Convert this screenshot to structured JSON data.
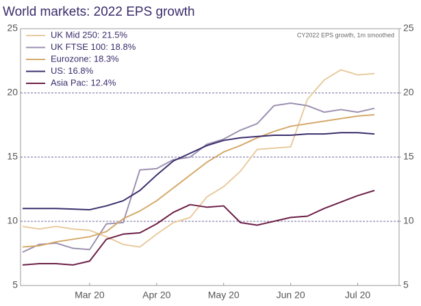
{
  "chart_data": {
    "type": "line",
    "title": "World markets: 2022 EPS growth",
    "annotation": "CY2022 EPS growth, 1m smoothed",
    "categories": [
      null,
      null,
      null,
      null,
      "Mar 20",
      null,
      null,
      null,
      "Apr 20",
      null,
      null,
      null,
      "May 20",
      null,
      null,
      null,
      "Jun 20",
      null,
      null,
      null,
      "Jul 20",
      null
    ],
    "series": [
      {
        "name": "UK Mid 250: 21.5%",
        "color": "#e8cb9f",
        "values": [
          9.6,
          9.4,
          9.6,
          9.4,
          9.3,
          8.8,
          8.2,
          8.0,
          9.0,
          9.9,
          10.3,
          11.9,
          12.7,
          13.9,
          15.6,
          15.7,
          15.8,
          19.5,
          21.0,
          21.8,
          21.4,
          21.5
        ]
      },
      {
        "name": "UK FTSE 100: 18.8%",
        "color": "#9b8fb0",
        "values": [
          7.6,
          8.2,
          8.3,
          7.9,
          7.8,
          9.8,
          9.9,
          14.0,
          14.1,
          14.8,
          15.0,
          16.0,
          16.4,
          17.1,
          17.6,
          19.0,
          19.2,
          19.0,
          18.5,
          18.7,
          18.5,
          18.8
        ]
      },
      {
        "name": "Eurozone: 18.3%",
        "color": "#d4a96a",
        "values": [
          8.0,
          8.1,
          8.4,
          8.6,
          8.8,
          9.2,
          10.2,
          10.8,
          11.6,
          12.6,
          13.6,
          14.6,
          15.4,
          15.9,
          16.5,
          17.0,
          17.4,
          17.6,
          17.8,
          18.0,
          18.2,
          18.3
        ]
      },
      {
        "name": "US: 16.8%",
        "color": "#3a2d6b",
        "values": [
          11.0,
          11.0,
          11.0,
          10.95,
          10.9,
          11.2,
          11.6,
          12.4,
          13.6,
          14.7,
          15.3,
          15.9,
          16.3,
          16.5,
          16.6,
          16.7,
          16.7,
          16.8,
          16.8,
          16.9,
          16.9,
          16.8
        ]
      },
      {
        "name": "Asia Pac: 12.4%",
        "color": "#6b1d45",
        "values": [
          6.6,
          6.7,
          6.7,
          6.6,
          6.9,
          8.6,
          9.0,
          9.1,
          9.8,
          10.7,
          11.3,
          11.1,
          11.2,
          9.9,
          9.7,
          10.0,
          10.3,
          10.4,
          11.0,
          11.5,
          12.0,
          12.4
        ]
      }
    ],
    "ylim": [
      5,
      25
    ],
    "yticks": [
      5,
      10,
      15,
      20,
      25
    ],
    "y2lim": [
      5,
      25
    ],
    "y2ticks": [
      5,
      10,
      15,
      20,
      25
    ],
    "grid": true,
    "legend": "top-left"
  }
}
